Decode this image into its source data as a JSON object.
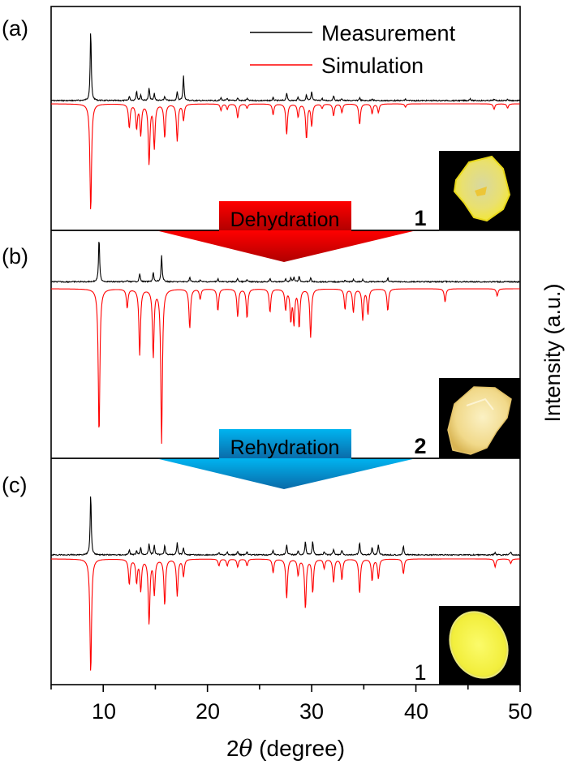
{
  "figure": {
    "panel_labels": [
      "(a)",
      "(b)",
      "(c)"
    ],
    "legend": {
      "measurement": "Measurement",
      "simulation": "Simulation",
      "measurement_color": "#000000",
      "simulation_color": "#ff0000"
    },
    "arrows": [
      {
        "label": "Dehydration",
        "color_top": "#ff0000",
        "color_bottom": "#b00000"
      },
      {
        "label": "Rehydration",
        "color_top": "#00b4f0",
        "color_bottom": "#0a6aa8"
      }
    ],
    "compound_labels": [
      "1",
      "2",
      "1"
    ],
    "insets": [
      {
        "description": "yellow transparent crystal of compound 1",
        "crystal_color": "#f2e63a"
      },
      {
        "description": "pale yellow-orange opaque crystal of compound 2",
        "crystal_color": "#f3d98a"
      },
      {
        "description": "bright yellow rounded crystal of compound 1 after rehydration",
        "crystal_color": "#f4f040"
      }
    ],
    "xlabel": "2θ (degree)",
    "xlabel_prefix": "2",
    "xlabel_theta": "θ",
    "xlabel_suffix": " (degree)",
    "ylabel": "Intensity (a.u.)",
    "x_ticks": [
      "10",
      "20",
      "30",
      "40",
      "50"
    ]
  },
  "chart_data": {
    "type": "line",
    "title": "",
    "xlabel": "2θ (degree)",
    "ylabel": "Intensity (a.u.)",
    "xlim": [
      5,
      50
    ],
    "x_ticks": [
      10,
      20,
      30,
      40,
      50
    ],
    "x_minor_ticks": [
      15,
      25,
      35,
      45
    ],
    "grid": false,
    "legend_position": "top-right of panel (a)",
    "panels": [
      {
        "label": "(a)",
        "compound": "1",
        "series": [
          {
            "name": "Measurement",
            "color": "#000000",
            "peaks_2theta": [
              8.8,
              12.5,
              13.2,
              13.6,
              14.4,
              14.9,
              15.9,
              17.1,
              17.7,
              21.3,
              21.9,
              22.9,
              23.8,
              26.3,
              27.6,
              28.7,
              29.5,
              30.0,
              31.0,
              32.1,
              32.9,
              34.6,
              35.8,
              39.0,
              45.2,
              47.5,
              48.8
            ],
            "relative_intensity": [
              100,
              6,
              14,
              8,
              18,
              10,
              6,
              12,
              35,
              4,
              3,
              4,
              3,
              4,
              11,
              5,
              8,
              12,
              3,
              7,
              3,
              4,
              3,
              2,
              3,
              2,
              2
            ]
          },
          {
            "name": "Simulation",
            "color": "#ff0000",
            "peaks_2theta": [
              8.8,
              12.5,
              13.2,
              13.6,
              14.4,
              14.9,
              15.9,
              17.1,
              17.7,
              21.3,
              21.9,
              22.9,
              23.8,
              26.3,
              27.6,
              28.7,
              29.5,
              30.0,
              31.0,
              32.1,
              32.9,
              34.6,
              35.8,
              36.4,
              39.0,
              47.5,
              48.8
            ],
            "relative_intensity": [
              100,
              22,
              22,
              28,
              55,
              40,
              31,
              34,
              15,
              6,
              5,
              13,
              4,
              10,
              28,
              12,
              32,
              20,
              4,
              11,
              8,
              19,
              9,
              8,
              3,
              5,
              4
            ]
          }
        ]
      },
      {
        "label": "(b)",
        "compound": "2",
        "series": [
          {
            "name": "Measurement",
            "color": "#000000",
            "peaks_2theta": [
              9.6,
              12.3,
              13.5,
              14.8,
              15.6,
              18.3,
              19.3,
              21.0,
              22.9,
              23.8,
              26.0,
              27.5,
              28.0,
              28.3,
              28.8,
              29.9,
              33.2,
              34.0,
              34.9,
              37.3,
              42.8
            ],
            "relative_intensity": [
              100,
              3,
              19,
              21,
              60,
              10,
              4,
              7,
              8,
              5,
              8,
              6,
              9,
              10,
              12,
              9,
              4,
              5,
              5,
              9,
              2
            ]
          },
          {
            "name": "Simulation",
            "color": "#ff0000",
            "peaks_2theta": [
              9.6,
              12.3,
              13.5,
              14.8,
              15.6,
              18.3,
              19.3,
              21.0,
              22.9,
              23.8,
              26.0,
              27.5,
              28.0,
              28.3,
              28.8,
              29.9,
              33.2,
              34.0,
              34.9,
              35.4,
              37.3,
              42.8,
              47.8
            ],
            "relative_intensity": [
              100,
              13,
              45,
              46,
              105,
              27,
              7,
              15,
              19,
              20,
              16,
              14,
              21,
              23,
              26,
              33,
              14,
              16,
              21,
              17,
              15,
              9,
              5
            ]
          }
        ]
      },
      {
        "label": "(c)",
        "compound": "1",
        "series": [
          {
            "name": "Measurement",
            "color": "#000000",
            "peaks_2theta": [
              8.8,
              12.5,
              13.2,
              13.6,
              14.4,
              14.9,
              15.9,
              17.1,
              17.7,
              21.1,
              21.9,
              22.9,
              23.8,
              26.3,
              27.6,
              28.7,
              29.4,
              30.1,
              31.2,
              32.1,
              32.9,
              34.6,
              35.8,
              36.4,
              38.8,
              47.6,
              49.1
            ],
            "relative_intensity": [
              100,
              8,
              7,
              12,
              19,
              16,
              16,
              20,
              12,
              4,
              5,
              6,
              6,
              7,
              16,
              6,
              22,
              22,
              5,
              9,
              7,
              20,
              12,
              16,
              14,
              4,
              5
            ]
          },
          {
            "name": "Simulation",
            "color": "#ff0000",
            "peaks_2theta": [
              8.8,
              12.5,
              13.2,
              13.6,
              14.4,
              14.9,
              15.9,
              17.1,
              17.7,
              21.1,
              21.9,
              22.9,
              23.8,
              26.3,
              27.6,
              28.7,
              29.4,
              30.1,
              31.2,
              32.1,
              32.9,
              34.6,
              35.8,
              36.4,
              38.8,
              47.6,
              49.1
            ],
            "relative_intensity": [
              100,
              22,
              20,
              27,
              56,
              30,
              40,
              32,
              15,
              6,
              6,
              7,
              6,
              12,
              34,
              14,
              43,
              29,
              8,
              20,
              18,
              30,
              19,
              17,
              13,
              7,
              4
            ]
          }
        ]
      }
    ]
  }
}
